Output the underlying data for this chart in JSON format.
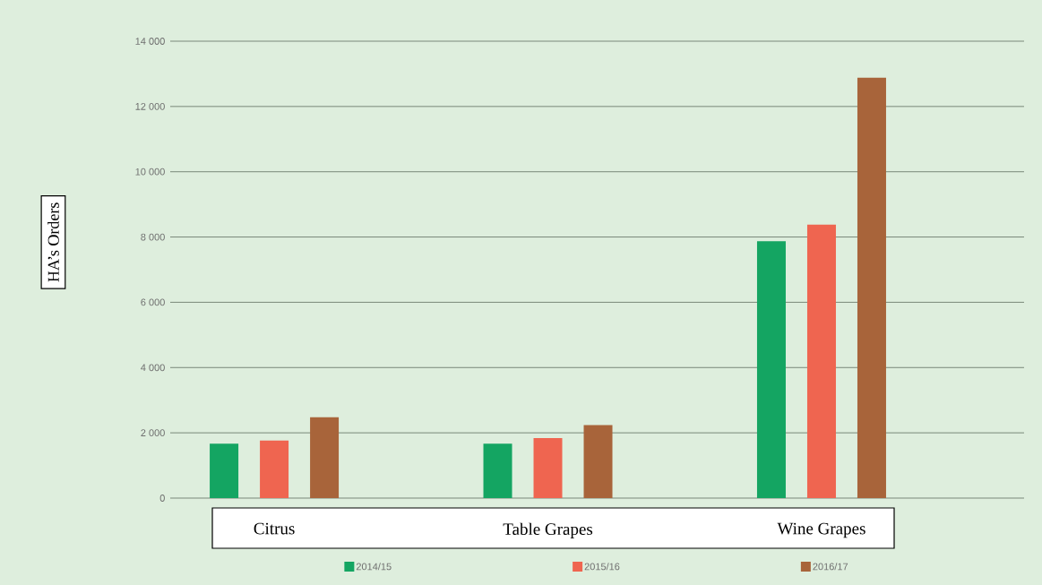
{
  "chart_data": {
    "type": "bar",
    "ylabel": "HA’s Orders",
    "categories": [
      "Citrus",
      "Table Grapes",
      "Wine Grapes"
    ],
    "series": [
      {
        "name": "2014/15",
        "color": "#14a562",
        "values": [
          1670,
          1670,
          7870
        ]
      },
      {
        "name": "2015/16",
        "color": "#ef6550",
        "values": [
          1760,
          1840,
          8380
        ]
      },
      {
        "name": "2016/17",
        "color": "#a8643a",
        "values": [
          2480,
          2240,
          12880
        ]
      }
    ],
    "ylim": [
      0,
      14000
    ],
    "yticks": [
      0,
      {
        "value": 2000,
        "label": "2 000"
      },
      {
        "value": 4000,
        "label": "4 000"
      },
      {
        "value": 6000,
        "label": "6 000"
      },
      {
        "value": 8000,
        "label": "8 000"
      },
      {
        "value": 10000,
        "label": "10 000"
      },
      {
        "value": 12000,
        "label": "12 000"
      },
      {
        "value": 14000,
        "label": "14 000"
      }
    ],
    "grid": "y",
    "legend": "bottom"
  }
}
